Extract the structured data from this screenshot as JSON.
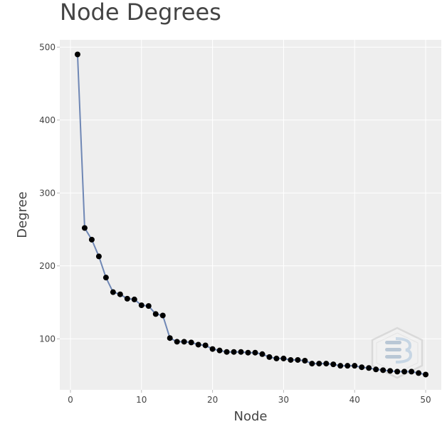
{
  "chart_data": {
    "type": "line",
    "title": "Node Degrees",
    "xlabel": "Node",
    "ylabel": "Degree",
    "xlim": [
      -1.5,
      52.2
    ],
    "ylim": [
      30,
      510
    ],
    "xticks": [
      0,
      10,
      20,
      30,
      40,
      50
    ],
    "yticks": [
      100,
      200,
      300,
      400,
      500
    ],
    "grid": true,
    "legend": "none",
    "colors": {
      "background": "#ffffff",
      "plot_background": "#eeeeee",
      "grid": "#ffffff",
      "line": "#6f87b5",
      "marker": "#000000",
      "text": "#444444"
    },
    "watermark_icon": "hexagon-logo-icon",
    "series": [
      {
        "x": [
          1,
          2,
          3,
          4,
          5,
          6,
          7,
          8,
          9,
          10,
          11,
          12,
          13,
          14,
          15,
          16,
          17,
          18,
          19,
          20,
          21,
          22,
          23,
          24,
          25,
          26,
          27,
          28,
          29,
          30,
          31,
          32,
          33,
          34,
          35,
          36,
          37,
          38,
          39,
          40,
          41,
          42,
          43,
          44,
          45,
          46,
          47,
          48,
          49,
          50
        ],
        "y": [
          490,
          252,
          236,
          213,
          184,
          164,
          161,
          155,
          154,
          146,
          145,
          134,
          132,
          101,
          96,
          96,
          95,
          92,
          91,
          86,
          84,
          82,
          82,
          82,
          81,
          81,
          79,
          75,
          73,
          73,
          71,
          71,
          70,
          66,
          66,
          66,
          65,
          63,
          63,
          63,
          61,
          60,
          58,
          57,
          56,
          55,
          55,
          55,
          53,
          51
        ]
      }
    ]
  }
}
